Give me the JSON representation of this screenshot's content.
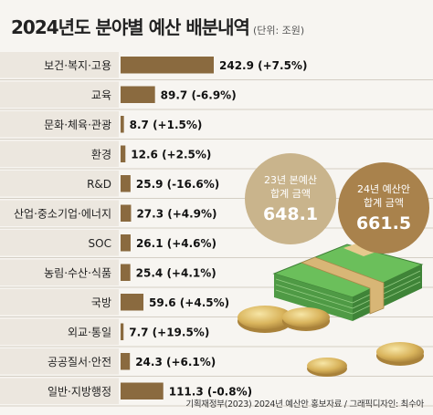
{
  "header": {
    "title": "2024년도 분야별 예산 배분내역",
    "unit": "(단위: 조원)"
  },
  "totals": {
    "y2023": {
      "label": "23년 본예산 합계 금액",
      "value": "648.1"
    },
    "y2024": {
      "label": "24년 예산안 합계 금액",
      "value": "661.5"
    }
  },
  "source": "기획재정부(2023) 2024년 예산안 홍보자료 / 그래픽디자인: 최수아",
  "colors": {
    "bar": "#8a6a3f",
    "row_bg": "#ece7df",
    "divider": "#c9c1b5",
    "circle_2023": "#c9b48c",
    "circle_2024": "#a9824c"
  },
  "chart_data": {
    "type": "bar",
    "orientation": "horizontal",
    "title": "2024년도 분야별 예산 배분내역",
    "unit": "(단위: 조원)",
    "categories": [
      "보건·복지·고용",
      "교육",
      "문화·체육·관광",
      "환경",
      "R&D",
      "산업·중소기업·에너지",
      "SOC",
      "농림·수산·식품",
      "국방",
      "외교·통일",
      "공공질서·안전",
      "일반·지방행정"
    ],
    "values": [
      242.9,
      89.7,
      8.7,
      12.6,
      25.9,
      27.3,
      26.1,
      25.4,
      59.6,
      7.7,
      24.3,
      111.3
    ],
    "value_labels": [
      "242.9 (+7.5%)",
      "89.7 (-6.9%)",
      "8.7 (+1.5%)",
      "12.6 (+2.5%)",
      "25.9 (-16.6%)",
      "27.3 (+4.9%)",
      "26.1 (+4.6%)",
      "25.4 (+4.1%)",
      "59.6 (+4.5%)",
      "7.7 (+19.5%)",
      "24.3 (+6.1%)",
      "111.3 (-0.8%)"
    ],
    "changes_pct": [
      7.5,
      -6.9,
      1.5,
      2.5,
      -16.6,
      4.9,
      4.6,
      4.1,
      4.5,
      19.5,
      6.1,
      -0.8
    ],
    "xlim": [
      0,
      242.9
    ],
    "grid": false
  }
}
